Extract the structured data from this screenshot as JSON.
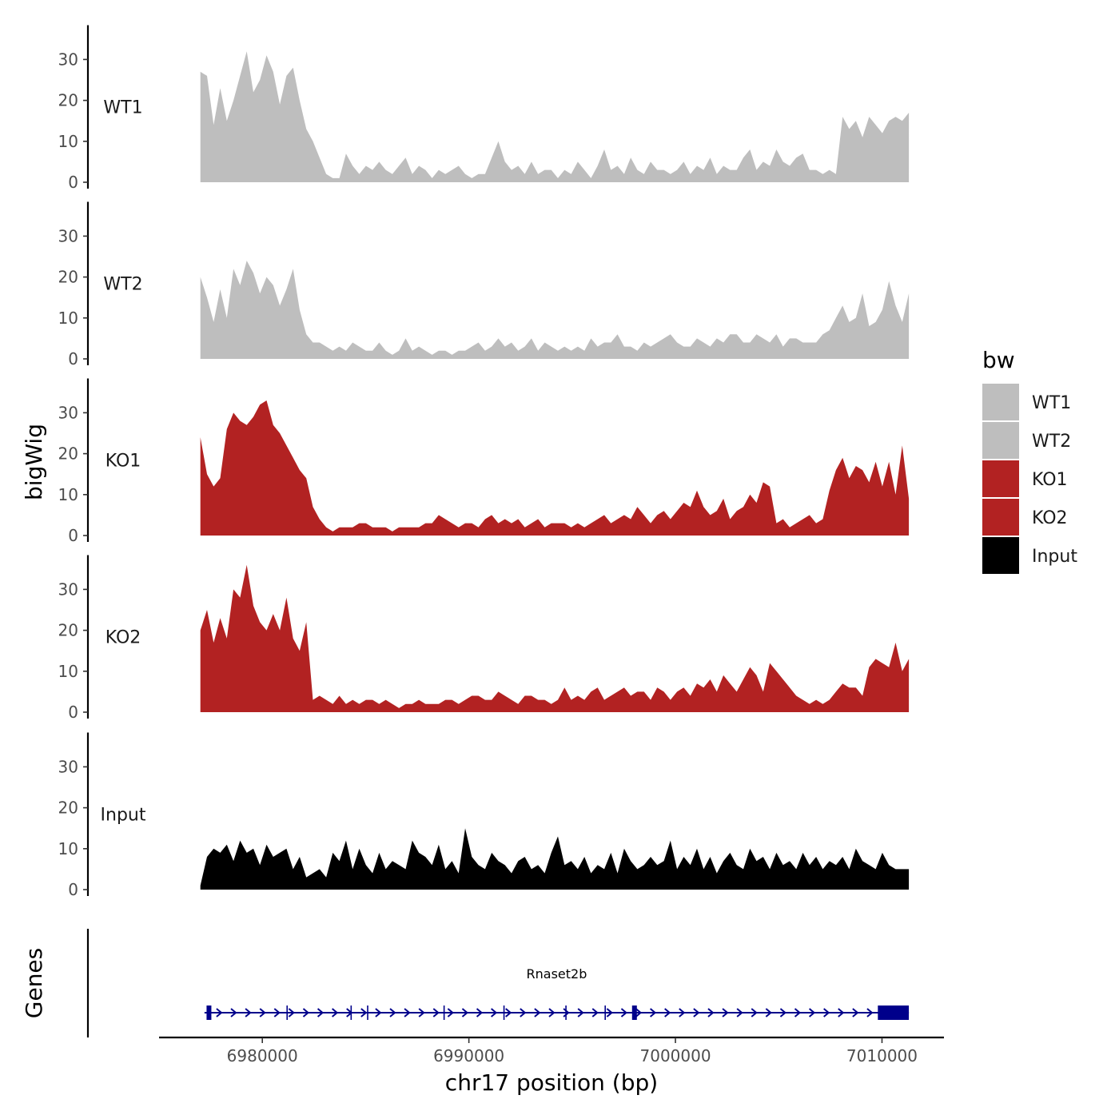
{
  "chart_data": {
    "type": "area",
    "title": "",
    "xlabel": "chr17 position (bp)",
    "ylabel": "bigWig",
    "genes_axis_label": "Genes",
    "xlim": [
      6975000,
      7013000
    ],
    "x_ticks": [
      6980000,
      6990000,
      7000000,
      7010000
    ],
    "x_tick_labels": [
      "6980000",
      "6990000",
      "7000000",
      "7010000"
    ],
    "ylim": [
      0,
      38
    ],
    "y_ticks": [
      0,
      10,
      20,
      30
    ],
    "y_tick_labels": [
      "0",
      "10",
      "20",
      "30"
    ],
    "data_x_range": [
      6977000,
      7011300
    ],
    "legend": {
      "title": "bw",
      "position": "right",
      "entries": [
        {
          "label": "WT1",
          "color": "#BEBEBE"
        },
        {
          "label": "WT2",
          "color": "#BEBEBE"
        },
        {
          "label": "KO1",
          "color": "#B22222"
        },
        {
          "label": "KO2",
          "color": "#B22222"
        },
        {
          "label": "Input",
          "color": "#000000"
        }
      ]
    },
    "series": [
      {
        "name": "WT1",
        "color": "#BEBEBE",
        "values": [
          27,
          26,
          14,
          23,
          15,
          20,
          26,
          32,
          22,
          25,
          31,
          27,
          19,
          26,
          28,
          20,
          13,
          10,
          6,
          2,
          1,
          1,
          7,
          4,
          2,
          4,
          3,
          5,
          3,
          2,
          4,
          6,
          2,
          4,
          3,
          1,
          3,
          2,
          3,
          4,
          2,
          1,
          2,
          2,
          6,
          10,
          5,
          3,
          4,
          2,
          5,
          2,
          3,
          3,
          1,
          3,
          2,
          5,
          3,
          1,
          4,
          8,
          3,
          4,
          2,
          6,
          3,
          2,
          5,
          3,
          3,
          2,
          3,
          5,
          2,
          4,
          3,
          6,
          2,
          4,
          3,
          3,
          6,
          8,
          3,
          5,
          4,
          8,
          5,
          4,
          6,
          7,
          3,
          3,
          2,
          3,
          2,
          16,
          13,
          15,
          11,
          16,
          14,
          12,
          15,
          16,
          15,
          17
        ]
      },
      {
        "name": "WT2",
        "color": "#BEBEBE",
        "values": [
          20,
          15,
          9,
          17,
          10,
          22,
          18,
          24,
          21,
          16,
          20,
          18,
          13,
          17,
          22,
          12,
          6,
          4,
          4,
          3,
          2,
          3,
          2,
          4,
          3,
          2,
          2,
          4,
          2,
          1,
          2,
          5,
          2,
          3,
          2,
          1,
          2,
          2,
          1,
          2,
          2,
          3,
          4,
          2,
          3,
          5,
          3,
          4,
          2,
          3,
          5,
          2,
          4,
          3,
          2,
          3,
          2,
          3,
          2,
          5,
          3,
          4,
          4,
          6,
          3,
          3,
          2,
          4,
          3,
          4,
          5,
          6,
          4,
          3,
          3,
          5,
          4,
          3,
          5,
          4,
          6,
          6,
          4,
          4,
          6,
          5,
          4,
          6,
          3,
          5,
          5,
          4,
          4,
          4,
          6,
          7,
          10,
          13,
          9,
          10,
          16,
          8,
          9,
          12,
          19,
          13,
          9,
          16
        ]
      },
      {
        "name": "KO1",
        "color": "#B22222",
        "values": [
          24,
          15,
          12,
          14,
          26,
          30,
          28,
          27,
          29,
          32,
          33,
          27,
          25,
          22,
          19,
          16,
          14,
          7,
          4,
          2,
          1,
          2,
          2,
          2,
          3,
          3,
          2,
          2,
          2,
          1,
          2,
          2,
          2,
          2,
          3,
          3,
          5,
          4,
          3,
          2,
          3,
          3,
          2,
          4,
          5,
          3,
          4,
          3,
          4,
          2,
          3,
          4,
          2,
          3,
          3,
          3,
          2,
          3,
          2,
          3,
          4,
          5,
          3,
          4,
          5,
          4,
          7,
          5,
          3,
          5,
          6,
          4,
          6,
          8,
          7,
          11,
          7,
          5,
          6,
          9,
          4,
          6,
          7,
          10,
          8,
          13,
          12,
          3,
          4,
          2,
          3,
          4,
          5,
          3,
          4,
          11,
          16,
          19,
          14,
          17,
          16,
          13,
          18,
          12,
          18,
          10,
          22,
          9
        ]
      },
      {
        "name": "KO2",
        "color": "#B22222",
        "values": [
          20,
          25,
          17,
          23,
          18,
          30,
          28,
          36,
          26,
          22,
          20,
          24,
          20,
          28,
          18,
          15,
          22,
          3,
          4,
          3,
          2,
          4,
          2,
          3,
          2,
          3,
          3,
          2,
          3,
          2,
          1,
          2,
          2,
          3,
          2,
          2,
          2,
          3,
          3,
          2,
          3,
          4,
          4,
          3,
          3,
          5,
          4,
          3,
          2,
          4,
          4,
          3,
          3,
          2,
          3,
          6,
          3,
          4,
          3,
          5,
          6,
          3,
          4,
          5,
          6,
          4,
          5,
          5,
          3,
          6,
          5,
          3,
          5,
          6,
          4,
          7,
          6,
          8,
          5,
          9,
          7,
          5,
          8,
          11,
          9,
          5,
          12,
          10,
          8,
          6,
          4,
          3,
          2,
          3,
          2,
          3,
          5,
          7,
          6,
          6,
          4,
          11,
          13,
          12,
          11,
          17,
          10,
          13
        ]
      },
      {
        "name": "Input",
        "color": "#000000",
        "values": [
          1,
          8,
          10,
          9,
          11,
          7,
          12,
          9,
          10,
          6,
          11,
          8,
          9,
          10,
          5,
          8,
          3,
          4,
          5,
          3,
          9,
          7,
          12,
          5,
          10,
          6,
          4,
          9,
          5,
          7,
          6,
          5,
          12,
          9,
          8,
          6,
          11,
          5,
          7,
          4,
          15,
          8,
          6,
          5,
          9,
          7,
          6,
          4,
          7,
          8,
          5,
          6,
          4,
          9,
          13,
          6,
          7,
          5,
          8,
          4,
          6,
          5,
          9,
          4,
          10,
          7,
          5,
          6,
          8,
          6,
          7,
          12,
          5,
          8,
          6,
          10,
          5,
          8,
          4,
          7,
          9,
          6,
          5,
          10,
          7,
          8,
          5,
          9,
          6,
          7,
          5,
          9,
          6,
          8,
          5,
          7,
          6,
          8,
          5,
          10,
          7,
          6,
          5,
          9,
          6,
          5,
          5,
          5
        ]
      }
    ],
    "gene": {
      "name": "Rnaset2b",
      "start": 6977200,
      "end": 7011300,
      "strand": "+",
      "exons": [
        [
          6977300,
          6977500
        ],
        [
          6997900,
          6998100
        ],
        [
          7009800,
          7011300
        ]
      ],
      "intron_marks": [
        6981200,
        6984300,
        6985100,
        6988800,
        6991700,
        6994700,
        6996600
      ]
    }
  }
}
